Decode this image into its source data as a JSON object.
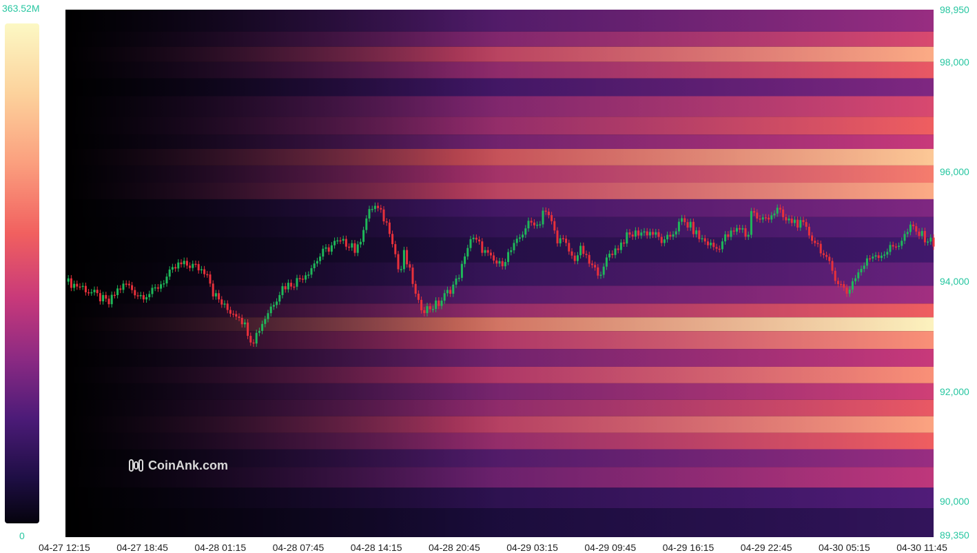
{
  "chart_data": {
    "type": "heatmap",
    "title": "",
    "xlabel": "",
    "ylabel": "",
    "ylim": [
      89350,
      98950
    ],
    "y_ticks": [
      "98,950",
      "98,000",
      "96,000",
      "94,000",
      "92,000",
      "90,000",
      "89,350"
    ],
    "y_tick_values": [
      98950,
      98000,
      96000,
      94000,
      92000,
      90000,
      89350
    ],
    "x_ticks": [
      "04-27 12:15",
      "04-27 18:45",
      "04-28 01:15",
      "04-28 07:45",
      "04-28 14:15",
      "04-28 20:45",
      "04-29 03:15",
      "04-29 09:45",
      "04-29 16:15",
      "04-29 22:45",
      "04-30 05:15",
      "04-30 11:45"
    ],
    "colorscale": {
      "max_label": "363.52M",
      "min_label": "0",
      "colors": [
        "#05030d",
        "#1e0e44",
        "#4c1b78",
        "#8c2a83",
        "#c8397a",
        "#f1605f",
        "#fb9f7e",
        "#fcd29c",
        "#fcf8c4"
      ]
    },
    "heat_bands": [
      {
        "price": 98700,
        "intensity": 0.4
      },
      {
        "price": 98400,
        "intensity": 0.55
      },
      {
        "price": 98150,
        "intensity": 0.78
      },
      {
        "price": 97850,
        "intensity": 0.6
      },
      {
        "price": 97550,
        "intensity": 0.35
      },
      {
        "price": 97200,
        "intensity": 0.55
      },
      {
        "price": 96800,
        "intensity": 0.62
      },
      {
        "price": 96550,
        "intensity": 0.5
      },
      {
        "price": 96280,
        "intensity": 0.85
      },
      {
        "price": 95950,
        "intensity": 0.68
      },
      {
        "price": 95650,
        "intensity": 0.78
      },
      {
        "price": 95350,
        "intensity": 0.35
      },
      {
        "price": 95000,
        "intensity": 0.28
      },
      {
        "price": 94600,
        "intensity": 0.22
      },
      {
        "price": 94100,
        "intensity": 0.3
      },
      {
        "price": 93750,
        "intensity": 0.42
      },
      {
        "price": 93450,
        "intensity": 0.62
      },
      {
        "price": 93250,
        "intensity": 0.98
      },
      {
        "price": 92950,
        "intensity": 0.72
      },
      {
        "price": 92600,
        "intensity": 0.5
      },
      {
        "price": 92300,
        "intensity": 0.72
      },
      {
        "price": 92000,
        "intensity": 0.52
      },
      {
        "price": 91700,
        "intensity": 0.6
      },
      {
        "price": 91400,
        "intensity": 0.76
      },
      {
        "price": 91100,
        "intensity": 0.62
      },
      {
        "price": 90800,
        "intensity": 0.4
      },
      {
        "price": 90450,
        "intensity": 0.48
      },
      {
        "price": 90050,
        "intensity": 0.26
      },
      {
        "price": 89700,
        "intensity": 0.18
      }
    ],
    "price_series": [
      {
        "t": 0,
        "p": 94000
      },
      {
        "t": 0.02,
        "p": 93900
      },
      {
        "t": 0.04,
        "p": 93700
      },
      {
        "t": 0.05,
        "p": 93600
      },
      {
        "t": 0.06,
        "p": 93850
      },
      {
        "t": 0.07,
        "p": 93950
      },
      {
        "t": 0.085,
        "p": 93750
      },
      {
        "t": 0.1,
        "p": 93800
      },
      {
        "t": 0.115,
        "p": 94050
      },
      {
        "t": 0.13,
        "p": 94300
      },
      {
        "t": 0.145,
        "p": 94300
      },
      {
        "t": 0.16,
        "p": 94200
      },
      {
        "t": 0.16,
        "p": 94400
      },
      {
        "t": 0.17,
        "p": 93800
      },
      {
        "t": 0.185,
        "p": 93500
      },
      {
        "t": 0.2,
        "p": 93400
      },
      {
        "t": 0.21,
        "p": 93100
      },
      {
        "t": 0.215,
        "p": 92900
      },
      {
        "t": 0.225,
        "p": 93200
      },
      {
        "t": 0.235,
        "p": 93500
      },
      {
        "t": 0.25,
        "p": 93900
      },
      {
        "t": 0.265,
        "p": 94000
      },
      {
        "t": 0.28,
        "p": 94200
      },
      {
        "t": 0.295,
        "p": 94500
      },
      {
        "t": 0.31,
        "p": 94700
      },
      {
        "t": 0.33,
        "p": 94700
      },
      {
        "t": 0.335,
        "p": 94500
      },
      {
        "t": 0.345,
        "p": 95100
      },
      {
        "t": 0.355,
        "p": 95400
      },
      {
        "t": 0.365,
        "p": 95200
      },
      {
        "t": 0.375,
        "p": 94900
      },
      {
        "t": 0.385,
        "p": 94100
      },
      {
        "t": 0.39,
        "p": 94500
      },
      {
        "t": 0.4,
        "p": 94000
      },
      {
        "t": 0.405,
        "p": 93600
      },
      {
        "t": 0.415,
        "p": 93500
      },
      {
        "t": 0.43,
        "p": 93600
      },
      {
        "t": 0.44,
        "p": 93800
      },
      {
        "t": 0.45,
        "p": 94000
      },
      {
        "t": 0.46,
        "p": 94400
      },
      {
        "t": 0.465,
        "p": 94800
      },
      {
        "t": 0.475,
        "p": 94700
      },
      {
        "t": 0.49,
        "p": 94400
      },
      {
        "t": 0.5,
        "p": 94300
      },
      {
        "t": 0.51,
        "p": 94500
      },
      {
        "t": 0.52,
        "p": 94700
      },
      {
        "t": 0.53,
        "p": 95000
      },
      {
        "t": 0.54,
        "p": 95100
      },
      {
        "t": 0.545,
        "p": 95000
      },
      {
        "t": 0.55,
        "p": 95300
      },
      {
        "t": 0.56,
        "p": 95100
      },
      {
        "t": 0.565,
        "p": 94800
      },
      {
        "t": 0.575,
        "p": 94700
      },
      {
        "t": 0.585,
        "p": 94400
      },
      {
        "t": 0.595,
        "p": 94600
      },
      {
        "t": 0.6,
        "p": 94400
      },
      {
        "t": 0.61,
        "p": 94200
      },
      {
        "t": 0.62,
        "p": 94200
      },
      {
        "t": 0.625,
        "p": 94500
      },
      {
        "t": 0.635,
        "p": 94600
      },
      {
        "t": 0.645,
        "p": 94800
      },
      {
        "t": 0.66,
        "p": 94900
      },
      {
        "t": 0.675,
        "p": 94900
      },
      {
        "t": 0.69,
        "p": 94700
      },
      {
        "t": 0.7,
        "p": 94900
      },
      {
        "t": 0.71,
        "p": 95100
      },
      {
        "t": 0.72,
        "p": 95000
      },
      {
        "t": 0.73,
        "p": 94800
      },
      {
        "t": 0.74,
        "p": 94700
      },
      {
        "t": 0.75,
        "p": 94600
      },
      {
        "t": 0.76,
        "p": 94800
      },
      {
        "t": 0.77,
        "p": 94900
      },
      {
        "t": 0.78,
        "p": 95000
      },
      {
        "t": 0.785,
        "p": 94700
      },
      {
        "t": 0.79,
        "p": 95300
      },
      {
        "t": 0.8,
        "p": 95100
      },
      {
        "t": 0.81,
        "p": 95200
      },
      {
        "t": 0.82,
        "p": 95300
      },
      {
        "t": 0.83,
        "p": 95100
      },
      {
        "t": 0.84,
        "p": 95100
      },
      {
        "t": 0.85,
        "p": 95000
      },
      {
        "t": 0.86,
        "p": 94800
      },
      {
        "t": 0.87,
        "p": 94600
      },
      {
        "t": 0.875,
        "p": 94400
      },
      {
        "t": 0.88,
        "p": 94300
      },
      {
        "t": 0.89,
        "p": 94000
      },
      {
        "t": 0.895,
        "p": 93900
      },
      {
        "t": 0.9,
        "p": 93800
      },
      {
        "t": 0.91,
        "p": 94100
      },
      {
        "t": 0.92,
        "p": 94300
      },
      {
        "t": 0.93,
        "p": 94500
      },
      {
        "t": 0.94,
        "p": 94500
      },
      {
        "t": 0.95,
        "p": 94600
      },
      {
        "t": 0.96,
        "p": 94700
      },
      {
        "t": 0.97,
        "p": 94900
      },
      {
        "t": 0.975,
        "p": 95000
      },
      {
        "t": 0.98,
        "p": 94900
      },
      {
        "t": 0.99,
        "p": 94800
      },
      {
        "t": 1.0,
        "p": 94700
      }
    ],
    "watermark": "CoinAnk.com"
  }
}
